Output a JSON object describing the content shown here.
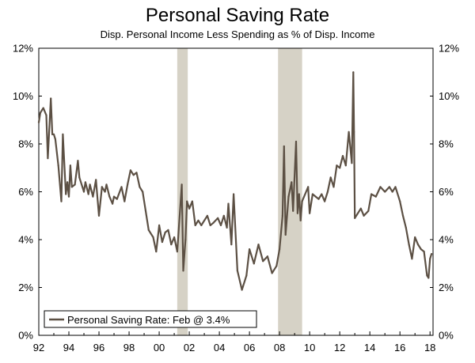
{
  "chart_data": {
    "type": "line",
    "title": "Personal Saving Rate",
    "subtitle": "Disp. Personal Income Less Spending as % of Disp. Income",
    "legend": "Personal Saving Rate: Feb @ 3.4%",
    "legend_position": "bottom-left",
    "y_left_ticks": [
      "12%",
      "10%",
      "8%",
      "6%",
      "4%",
      "2%",
      "0%"
    ],
    "y_right_ticks": [
      "12%",
      "10%",
      "8%",
      "6%",
      "4%",
      "2%",
      "0%"
    ],
    "y_tick_values": [
      12,
      10,
      8,
      6,
      4,
      2,
      0
    ],
    "x_ticks": [
      "92",
      "94",
      "96",
      "98",
      "00",
      "02",
      "04",
      "06",
      "08",
      "10",
      "12",
      "14",
      "16",
      "18"
    ],
    "x_tick_values": [
      1992,
      1994,
      1996,
      1998,
      2000,
      2002,
      2004,
      2006,
      2008,
      2010,
      2012,
      2014,
      2016,
      2018
    ],
    "xlim": [
      1992,
      2018.2
    ],
    "ylim": [
      0,
      12
    ],
    "recessions": [
      [
        2001.2,
        2001.9
      ],
      [
        2007.9,
        2009.5
      ]
    ],
    "colors": {
      "line": "#5c5044",
      "recession": "#d6d2c6",
      "axis": "#000000"
    },
    "series": [
      {
        "name": "Personal Saving Rate",
        "x": [
          1992.0,
          1992.1,
          1992.3,
          1992.5,
          1992.6,
          1992.8,
          1992.9,
          1993.0,
          1993.1,
          1993.3,
          1993.5,
          1993.6,
          1993.8,
          1993.9,
          1994.0,
          1994.1,
          1994.2,
          1994.4,
          1994.6,
          1994.7,
          1994.9,
          1995.0,
          1995.1,
          1995.3,
          1995.4,
          1995.6,
          1995.8,
          1996.0,
          1996.2,
          1996.4,
          1996.5,
          1996.7,
          1996.9,
          1997.0,
          1997.2,
          1997.5,
          1997.7,
          1997.9,
          1998.1,
          1998.3,
          1998.5,
          1998.7,
          1998.9,
          1999.1,
          1999.3,
          1999.6,
          1999.8,
          2000.0,
          2000.2,
          2000.4,
          2000.6,
          2000.8,
          2001.0,
          2001.2,
          2001.5,
          2001.6,
          2001.75,
          2001.85,
          2002.0,
          2002.2,
          2002.4,
          2002.6,
          2002.8,
          2003.0,
          2003.2,
          2003.4,
          2003.6,
          2003.9,
          2004.1,
          2004.3,
          2004.5,
          2004.6,
          2004.8,
          2004.95,
          2005.2,
          2005.5,
          2005.8,
          2006.0,
          2006.3,
          2006.6,
          2006.9,
          2007.2,
          2007.5,
          2007.8,
          2008.0,
          2008.2,
          2008.3,
          2008.4,
          2008.6,
          2008.8,
          2008.9,
          2009.1,
          2009.2,
          2009.3,
          2009.4,
          2009.5,
          2009.7,
          2009.9,
          2010.0,
          2010.2,
          2010.4,
          2010.6,
          2010.8,
          2011.0,
          2011.2,
          2011.4,
          2011.6,
          2011.8,
          2012.0,
          2012.2,
          2012.4,
          2012.6,
          2012.8,
          2012.9,
          2012.95,
          2013.0,
          2013.2,
          2013.4,
          2013.6,
          2013.9,
          2014.1,
          2014.4,
          2014.7,
          2015.0,
          2015.3,
          2015.5,
          2015.7,
          2016.0,
          2016.2,
          2016.4,
          2016.6,
          2016.8,
          2017.0,
          2017.2,
          2017.4,
          2017.6,
          2017.8,
          2017.9,
          2018.0,
          2018.1
        ],
        "y": [
          8.9,
          9.3,
          9.5,
          9.2,
          7.4,
          9.9,
          8.4,
          8.4,
          8.2,
          7.1,
          5.6,
          8.4,
          5.9,
          6.4,
          5.8,
          7.1,
          6.2,
          6.3,
          7.3,
          6.6,
          6.2,
          6.0,
          6.4,
          5.9,
          6.3,
          5.8,
          6.5,
          5.0,
          6.2,
          6.0,
          6.3,
          5.8,
          5.5,
          5.8,
          5.7,
          6.2,
          5.6,
          6.3,
          6.9,
          6.7,
          6.8,
          6.2,
          6.0,
          5.2,
          4.4,
          4.1,
          3.5,
          4.6,
          3.9,
          4.3,
          4.4,
          3.8,
          4.1,
          3.5,
          6.3,
          2.7,
          4.0,
          5.6,
          5.3,
          5.6,
          4.6,
          4.8,
          4.6,
          4.8,
          5.0,
          4.6,
          4.7,
          4.9,
          4.6,
          5.0,
          4.5,
          5.5,
          3.8,
          5.9,
          2.7,
          1.9,
          2.5,
          3.6,
          3.0,
          3.8,
          3.1,
          3.3,
          2.6,
          2.9,
          3.6,
          5.0,
          7.9,
          4.2,
          5.8,
          6.4,
          5.2,
          8.1,
          5.1,
          5.9,
          4.8,
          5.6,
          5.9,
          6.2,
          5.1,
          5.9,
          5.8,
          5.7,
          5.9,
          5.6,
          6.0,
          6.6,
          6.2,
          7.1,
          7.0,
          7.5,
          7.1,
          8.5,
          7.2,
          11.0,
          8.5,
          4.9,
          5.1,
          5.3,
          5.0,
          5.2,
          5.9,
          5.8,
          6.2,
          6.0,
          6.2,
          6.0,
          6.2,
          5.6,
          5.0,
          4.5,
          3.8,
          3.2,
          4.1,
          3.8,
          3.6,
          3.5,
          2.5,
          2.4,
          3.2,
          3.4
        ]
      }
    ]
  }
}
